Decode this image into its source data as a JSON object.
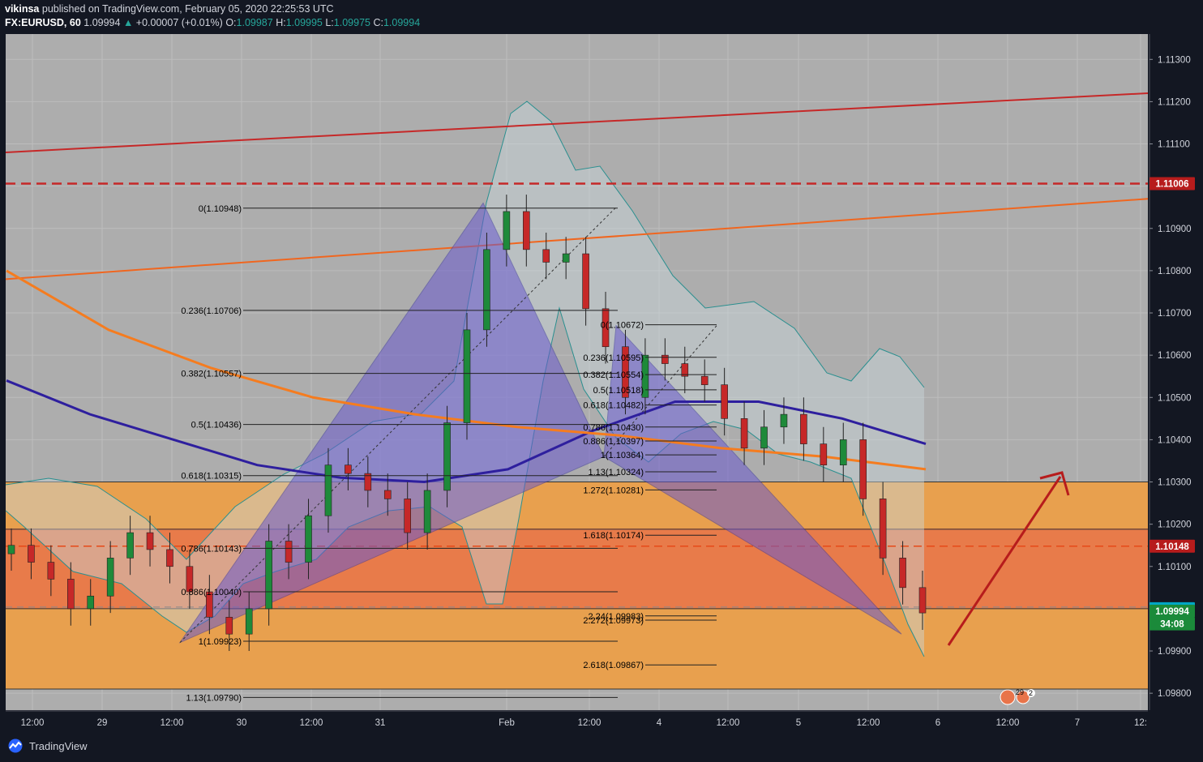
{
  "header": {
    "author": "vikinsa",
    "published_text": "published on TradingView.com, February 05, 2020 22:25:53 UTC",
    "symbol": "FX:EURUSD, 60",
    "price": "1.09994",
    "change": "+0.00007 (+0.01%)",
    "o_label": "O:",
    "o_value": "1.09987",
    "h_label": "H:",
    "h_value": "1.09995",
    "l_label": "L:",
    "l_value": "1.09975",
    "c_label": "C:",
    "c_value": "1.09994"
  },
  "footer": {
    "brand": "TradingView"
  },
  "colors": {
    "background": "#131722",
    "plot": "#adadad",
    "zone": "#e8a04e",
    "zone_inner": "#e8744a",
    "up": "#1e8a3a",
    "down": "#c62828",
    "ma_blue": "#2e1f9e",
    "ma_orange": "#f57c1f",
    "trend_red": "#c62828",
    "trend_orange": "#f0661f",
    "pattern": "#6a5acd"
  },
  "chart_data": {
    "type": "candlestick",
    "title": "FX:EURUSD, 60",
    "ylim": [
      1.0976,
      1.1136
    ],
    "y_ticks": [
      "1.09800",
      "1.09900",
      "1.10000",
      "1.10100",
      "1.10200",
      "1.10300",
      "1.10400",
      "1.10500",
      "1.10600",
      "1.10700",
      "1.10800",
      "1.10900",
      "1.11000",
      "1.11100",
      "1.11200",
      "1.11300"
    ],
    "x_ticks": [
      "12:00",
      "29",
      "12:00",
      "30",
      "12:00",
      "31",
      "Feb",
      "12:00",
      "4",
      "12:00",
      "5",
      "12:00",
      "6",
      "12:00",
      "7",
      "12:"
    ],
    "price_labels": [
      {
        "text": "1.11006",
        "value": 1.11006,
        "color": "#b71c1c"
      },
      {
        "text": "1.10148",
        "value": 1.10148,
        "color": "#b71c1c"
      },
      {
        "text": "1.10000",
        "value": 1.1,
        "color": "#00a6c4"
      },
      {
        "text": "1.09994",
        "value": 1.09994,
        "color": "#1b8a3a"
      },
      {
        "text": "34:08",
        "value": 1.09964,
        "color": "#1b8a3a"
      }
    ],
    "zones": [
      {
        "top": 1.103,
        "bottom": 1.0981,
        "color": "zone"
      },
      {
        "top": 1.1019,
        "bottom": 1.1,
        "color": "zone_inner"
      }
    ],
    "horizontal_lines": [
      {
        "value": 1.11006,
        "style": "dashed",
        "color": "#c62828"
      },
      {
        "value": 1.10148,
        "style": "dashed",
        "color": "#e64a19"
      },
      {
        "value": 1.1,
        "style": "dashed",
        "color": "#8a8a8a"
      }
    ],
    "fib_retracement_1": [
      {
        "label": "0(1.10948)",
        "value": 1.10948
      },
      {
        "label": "0.236(1.10706)",
        "value": 1.10706
      },
      {
        "label": "0.382(1.10557)",
        "value": 1.10557
      },
      {
        "label": "0.5(1.10436)",
        "value": 1.10436
      },
      {
        "label": "0.618(1.10315)",
        "value": 1.10315
      },
      {
        "label": "0.786(1.10143)",
        "value": 1.10143
      },
      {
        "label": "0.886(1.10040)",
        "value": 1.1004
      },
      {
        "label": "1(1.09923)",
        "value": 1.09923
      },
      {
        "label": "1.13(1.09790)",
        "value": 1.0979
      }
    ],
    "fib_retracement_2": [
      {
        "label": "0(1.10672)",
        "value": 1.10672
      },
      {
        "label": "0.236(1.10595)",
        "value": 1.10595
      },
      {
        "label": "0.382(1.10554)",
        "value": 1.10554
      },
      {
        "label": "0.5(1.10518)",
        "value": 1.10518
      },
      {
        "label": "0.618(1.10482)",
        "value": 1.10482
      },
      {
        "label": "0.786(1.10430)",
        "value": 1.1043
      },
      {
        "label": "0.886(1.10397)",
        "value": 1.10397
      },
      {
        "label": "1(1.10364)",
        "value": 1.10364
      },
      {
        "label": "1.13(1.10324)",
        "value": 1.10324
      },
      {
        "label": "1.272(1.10281)",
        "value": 1.10281
      },
      {
        "label": "1.618(1.10174)",
        "value": 1.10174
      },
      {
        "label": "2.24(1.09983)",
        "value": 1.09983
      },
      {
        "label": "2.272(1.09973)",
        "value": 1.09973
      },
      {
        "label": "2.618(1.09867)",
        "value": 1.09867
      }
    ],
    "harmonic_pattern": {
      "X": 1.0992,
      "A": 1.1096,
      "B": 1.1036,
      "C": 1.1067,
      "D": 1.0994
    },
    "trendlines": [
      {
        "name": "upper resistance",
        "from": 1.1108,
        "to": 1.1122
      },
      {
        "name": "channel",
        "from": 1.1078,
        "to": 1.1097
      }
    ],
    "moving_averages": [
      {
        "name": "MA blue",
        "values": [
          1.1054,
          1.1046,
          1.104,
          1.1034,
          1.1031,
          1.103,
          1.1033,
          1.1042,
          1.1049,
          1.1049,
          1.1045,
          1.1039
        ]
      },
      {
        "name": "MA orange",
        "values": [
          1.108,
          1.1066,
          1.1057,
          1.105,
          1.1046,
          1.1043,
          1.1041,
          1.1038,
          1.1036,
          1.1033
        ]
      }
    ],
    "candles_close": [
      1.1015,
      1.1011,
      1.1007,
      1.1,
      1.1003,
      1.1012,
      1.1018,
      1.1014,
      1.101,
      1.1004,
      1.0998,
      1.0994,
      1.1,
      1.1016,
      1.1011,
      1.1022,
      1.1034,
      1.1032,
      1.1028,
      1.1026,
      1.1018,
      1.1028,
      1.1044,
      1.1066,
      1.1085,
      1.1094,
      1.1085,
      1.1082,
      1.1084,
      1.1071,
      1.1062,
      1.105,
      1.106,
      1.1058,
      1.1055,
      1.1053,
      1.1045,
      1.1038,
      1.1043,
      1.1046,
      1.1039,
      1.1034,
      1.104,
      1.1026,
      1.1012,
      1.1005,
      1.0999
    ]
  }
}
